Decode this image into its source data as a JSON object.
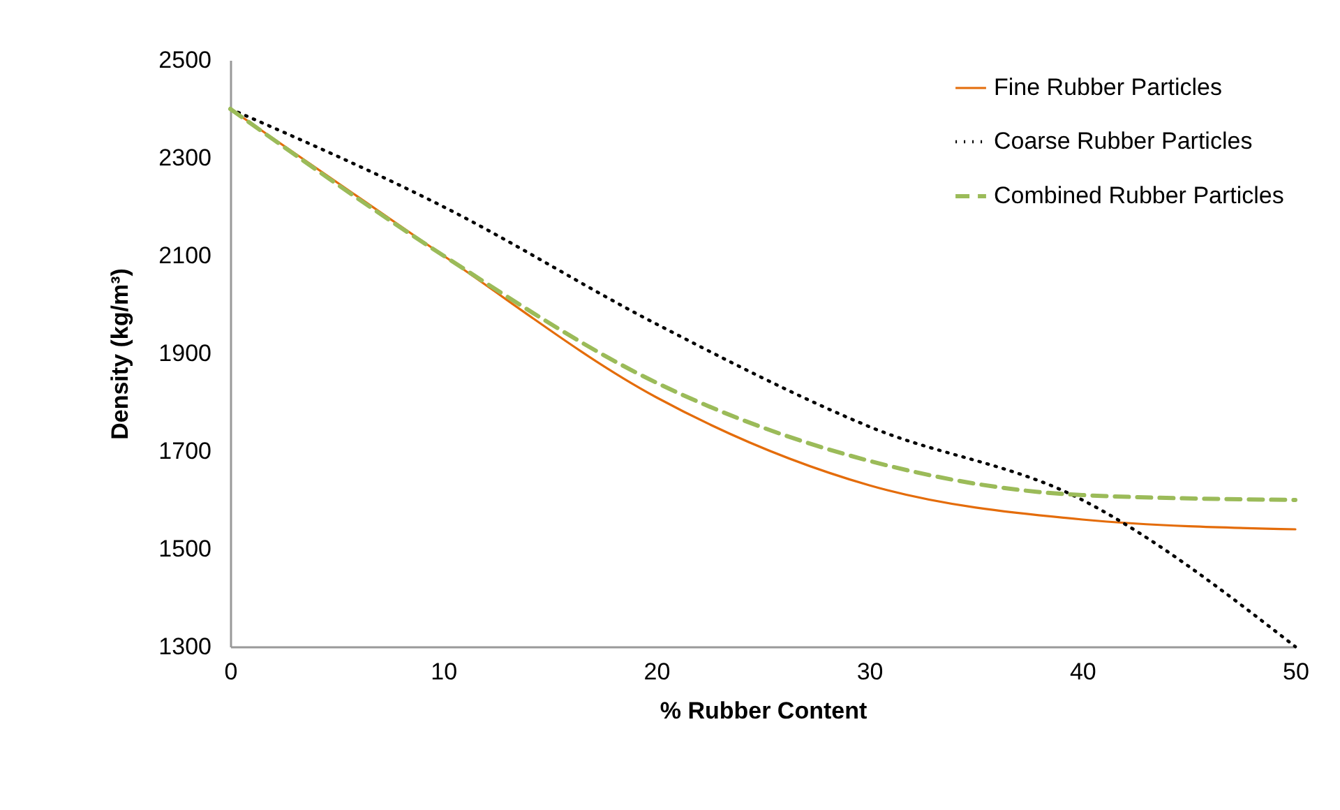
{
  "chart_data": {
    "type": "line",
    "xlabel": "% Rubber Content",
    "ylabel": "Density (kg/m³)",
    "x": [
      0,
      10,
      20,
      30,
      40,
      50
    ],
    "series": [
      {
        "name": "Fine Rubber Particles",
        "color": "#e46c0a",
        "line_style": "solid",
        "values": [
          2400,
          2100,
          1810,
          1630,
          1560,
          1540
        ]
      },
      {
        "name": "Coarse Rubber Particles",
        "color": "#000000",
        "line_style": "dotted",
        "values": [
          2400,
          2200,
          1960,
          1750,
          1600,
          1300
        ]
      },
      {
        "name": "Combined Rubber Particles",
        "color": "#9bbb59",
        "line_style": "dashed",
        "values": [
          2400,
          2100,
          1840,
          1680,
          1610,
          1600
        ]
      }
    ],
    "xlim": [
      0,
      50
    ],
    "xticks": [
      0,
      10,
      20,
      30,
      40,
      50
    ],
    "ylim": [
      1300,
      2500
    ],
    "yticks": [
      1300,
      1500,
      1700,
      1900,
      2100,
      2300,
      2500
    ],
    "grid": false,
    "legend": "top right",
    "marker": "none"
  }
}
